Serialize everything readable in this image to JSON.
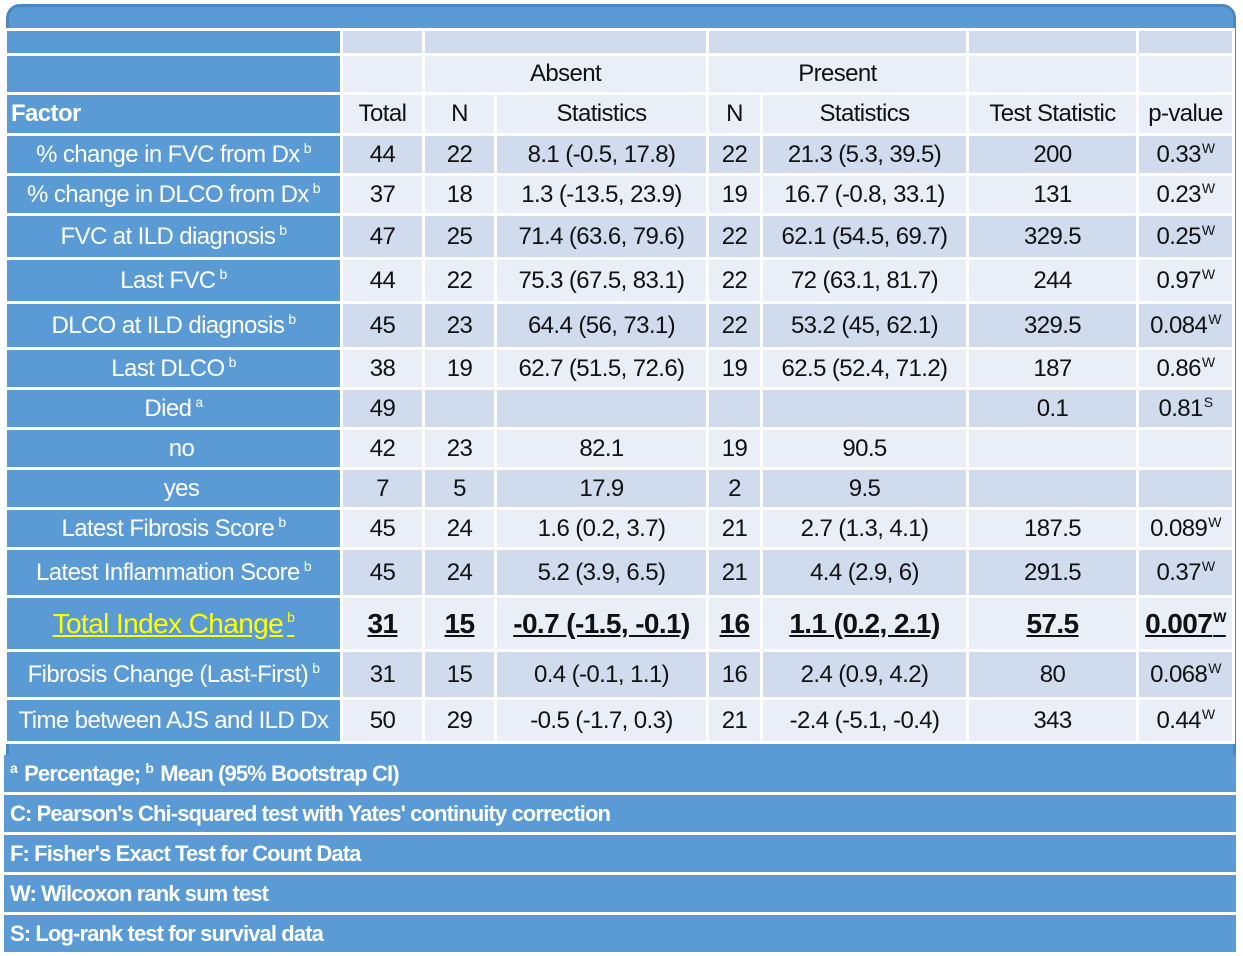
{
  "table": {
    "group_headers": {
      "absent": "Absent",
      "present": "Present"
    },
    "column_headers": {
      "factor": "Factor",
      "total": "Total",
      "n_absent": "N",
      "stats_absent": "Statistics",
      "n_present": "N",
      "stats_present": "Statistics",
      "test_statistic": "Test Statistic",
      "p_value": "p-value"
    },
    "rows": [
      {
        "factor": "% change in FVC from Dx",
        "factor_sup": "b",
        "total": "44",
        "n_absent": "22",
        "stats_absent": "8.1 (-0.5, 17.8)",
        "n_present": "22",
        "stats_present": "21.3 (5.3, 39.5)",
        "test_statistic": "200",
        "p_value": "0.33",
        "p_sup": "W"
      },
      {
        "factor": "% change in DLCO from Dx",
        "factor_sup": "b",
        "total": "37",
        "n_absent": "18",
        "stats_absent": "1.3 (-13.5, 23.9)",
        "n_present": "19",
        "stats_present": "16.7 (-0.8, 33.1)",
        "test_statistic": "131",
        "p_value": "0.23",
        "p_sup": "W"
      },
      {
        "factor": "FVC at ILD diagnosis",
        "factor_sup": "b",
        "total": "47",
        "n_absent": "25",
        "stats_absent": "71.4 (63.6, 79.6)",
        "n_present": "22",
        "stats_present": "62.1 (54.5, 69.7)",
        "test_statistic": "329.5",
        "p_value": "0.25",
        "p_sup": "W"
      },
      {
        "factor": "Last FVC",
        "factor_sup": "b",
        "total": "44",
        "n_absent": "22",
        "stats_absent": "75.3 (67.5, 83.1)",
        "n_present": "22",
        "stats_present": "72 (63.1, 81.7)",
        "test_statistic": "244",
        "p_value": "0.97",
        "p_sup": "W"
      },
      {
        "factor": "DLCO at ILD diagnosis",
        "factor_sup": "b",
        "total": "45",
        "n_absent": "23",
        "stats_absent": "64.4 (56, 73.1)",
        "n_present": "22",
        "stats_present": "53.2 (45, 62.1)",
        "test_statistic": "329.5",
        "p_value": "0.084",
        "p_sup": "W"
      },
      {
        "factor": "Last DLCO",
        "factor_sup": "b",
        "total": "38",
        "n_absent": "19",
        "stats_absent": "62.7 (51.5, 72.6)",
        "n_present": "19",
        "stats_present": "62.5 (52.4, 71.2)",
        "test_statistic": "187",
        "p_value": "0.86",
        "p_sup": "W"
      },
      {
        "factor": "Died",
        "factor_sup": "a",
        "total": "49",
        "n_absent": "",
        "stats_absent": "",
        "n_present": "",
        "stats_present": "",
        "test_statistic": "0.1",
        "p_value": "0.81",
        "p_sup": "S"
      },
      {
        "factor": "no",
        "factor_sup": "",
        "total": "42",
        "n_absent": "23",
        "stats_absent": "82.1",
        "n_present": "19",
        "stats_present": "90.5",
        "test_statistic": "",
        "p_value": "",
        "p_sup": ""
      },
      {
        "factor": "yes",
        "factor_sup": "",
        "total": "7",
        "n_absent": "5",
        "stats_absent": "17.9",
        "n_present": "2",
        "stats_present": "9.5",
        "test_statistic": "",
        "p_value": "",
        "p_sup": ""
      },
      {
        "factor": "Latest Fibrosis Score",
        "factor_sup": "b",
        "total": "45",
        "n_absent": "24",
        "stats_absent": "1.6 (0.2, 3.7)",
        "n_present": "21",
        "stats_present": "2.7 (1.3, 4.1)",
        "test_statistic": "187.5",
        "p_value": "0.089",
        "p_sup": "W"
      },
      {
        "factor": "Latest Inflammation Score",
        "factor_sup": "b",
        "total": "45",
        "n_absent": "24",
        "stats_absent": "5.2 (3.9, 6.5)",
        "n_present": "21",
        "stats_present": "4.4 (2.9, 6)",
        "test_statistic": "291.5",
        "p_value": "0.37",
        "p_sup": "W"
      },
      {
        "factor": "Total Index Change",
        "factor_sup": "b",
        "total": "31",
        "n_absent": "15",
        "stats_absent": "-0.7 (-1.5, -0.1)",
        "n_present": "16",
        "stats_present": "1.1 (0.2, 2.1)",
        "test_statistic": "57.5",
        "p_value": "0.007",
        "p_sup": "W",
        "highlight": true
      },
      {
        "factor": "Fibrosis Change (Last-First)",
        "factor_sup": "b",
        "total": "31",
        "n_absent": "15",
        "stats_absent": "0.4 (-0.1, 1.1)",
        "n_present": "16",
        "stats_present": "2.4 (0.9, 4.2)",
        "test_statistic": "80",
        "p_value": "0.068",
        "p_sup": "W"
      },
      {
        "factor": "Time between AJS and ILD Dx",
        "factor_sup": "",
        "total": "50",
        "n_absent": "29",
        "stats_absent": "-0.5 (-1.7, 0.3)",
        "n_present": "21",
        "stats_present": "-2.4 (-5.1, -0.4)",
        "test_statistic": "343",
        "p_value": "0.44",
        "p_sup": "W"
      }
    ]
  },
  "footnotes": {
    "line1_a": "a",
    "line1_a_text": " Percentage; ",
    "line1_b": "b",
    "line1_b_text": " Mean (95% Bootstrap CI)",
    "line2": "C: Pearson's Chi-squared test with Yates' continuity correction",
    "line3": "F: Fisher's Exact Test for Count Data",
    "line4": "W: Wilcoxon rank sum test",
    "line5": "S: Log-rank test for survival data"
  },
  "colors": {
    "header_blue": "#5b9bd5",
    "row_dark": "#d0dcee",
    "row_light": "#e9eef7",
    "highlight_text": "#ffff00"
  }
}
